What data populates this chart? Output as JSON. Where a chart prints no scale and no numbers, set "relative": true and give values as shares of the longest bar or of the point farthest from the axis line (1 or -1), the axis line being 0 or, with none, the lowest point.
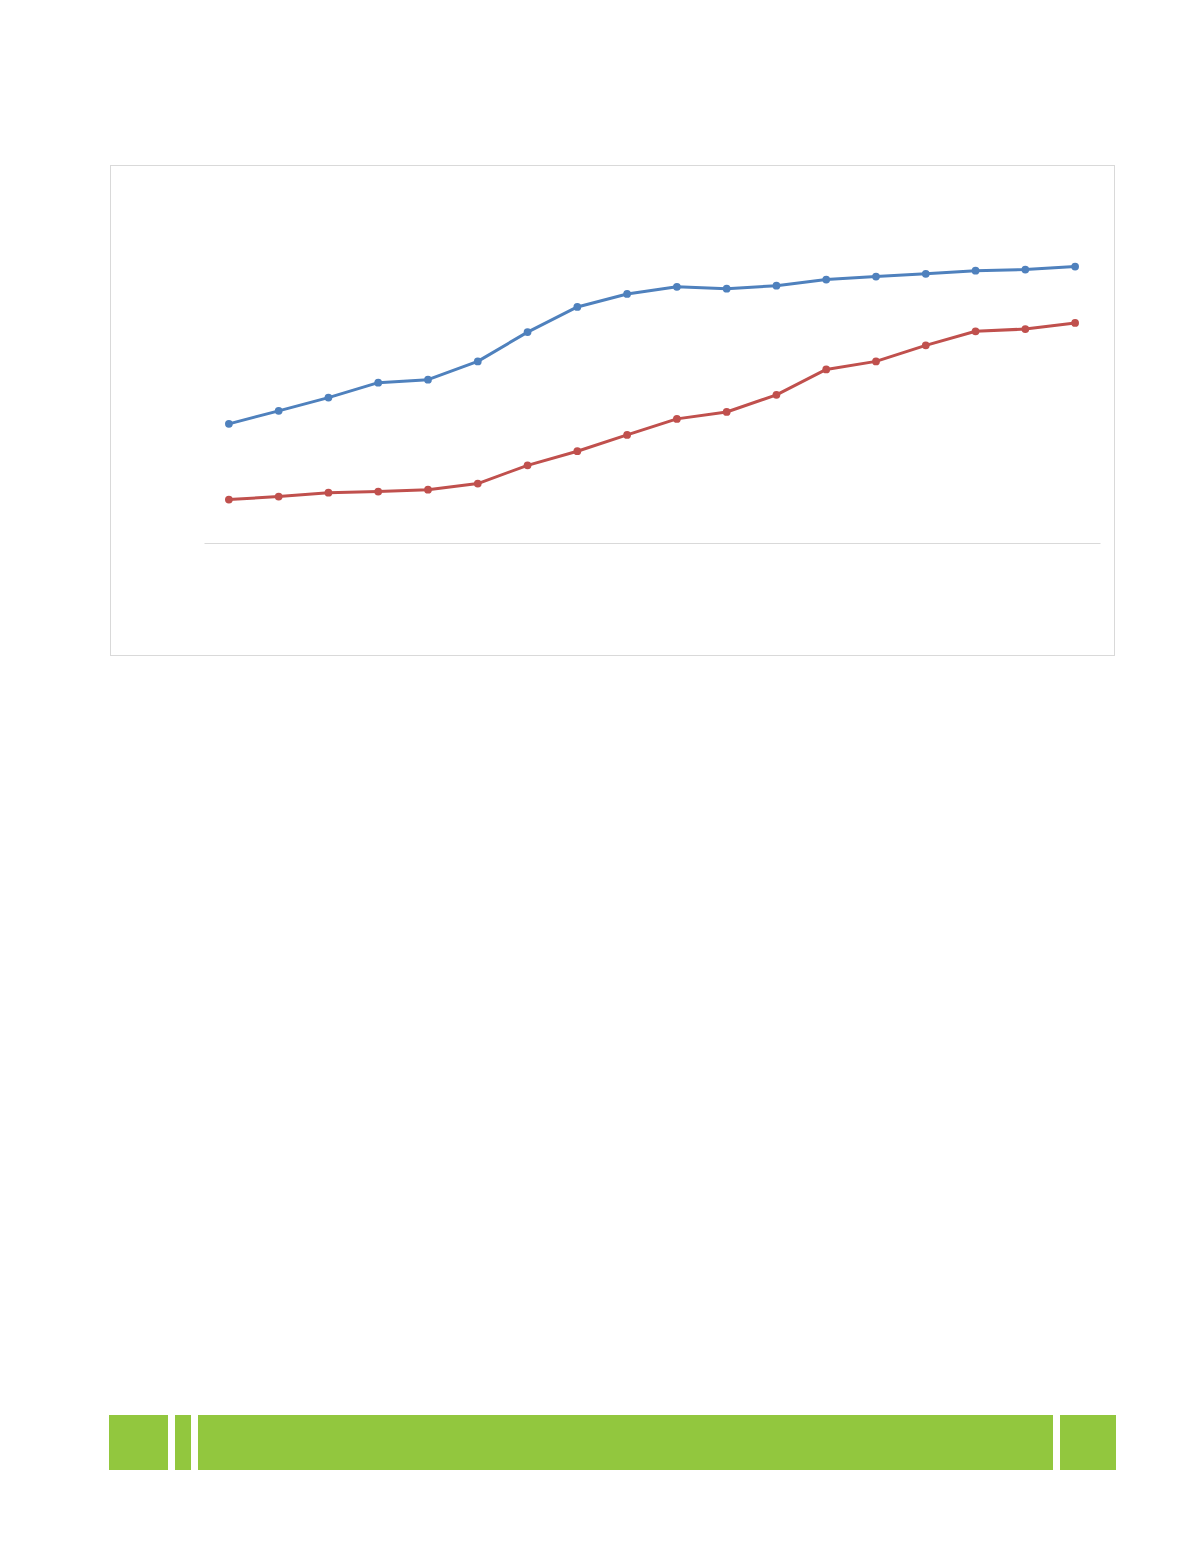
{
  "chart_data": {
    "type": "line",
    "relative": true,
    "marker": "circle",
    "line_style": "solid",
    "grid": false,
    "categories": [
      null,
      null,
      null,
      null,
      null,
      null,
      null,
      null,
      null,
      null,
      null,
      null,
      null,
      null,
      null,
      null,
      null,
      null
    ],
    "series": [
      {
        "color": "#4f81bd",
        "values": [
          0.431,
          0.478,
          0.526,
          0.58,
          0.591,
          0.657,
          0.763,
          0.854,
          0.901,
          0.927,
          0.92,
          0.931,
          0.953,
          0.964,
          0.974,
          0.985,
          0.989,
          1
        ]
      },
      {
        "color": "#c0504d",
        "values": [
          0.157,
          0.168,
          0.182,
          0.186,
          0.193,
          0.215,
          0.281,
          0.332,
          0.391,
          0.449,
          0.474,
          0.536,
          0.628,
          0.657,
          0.715,
          0.766,
          0.774,
          0.796
        ]
      }
    ]
  }
}
